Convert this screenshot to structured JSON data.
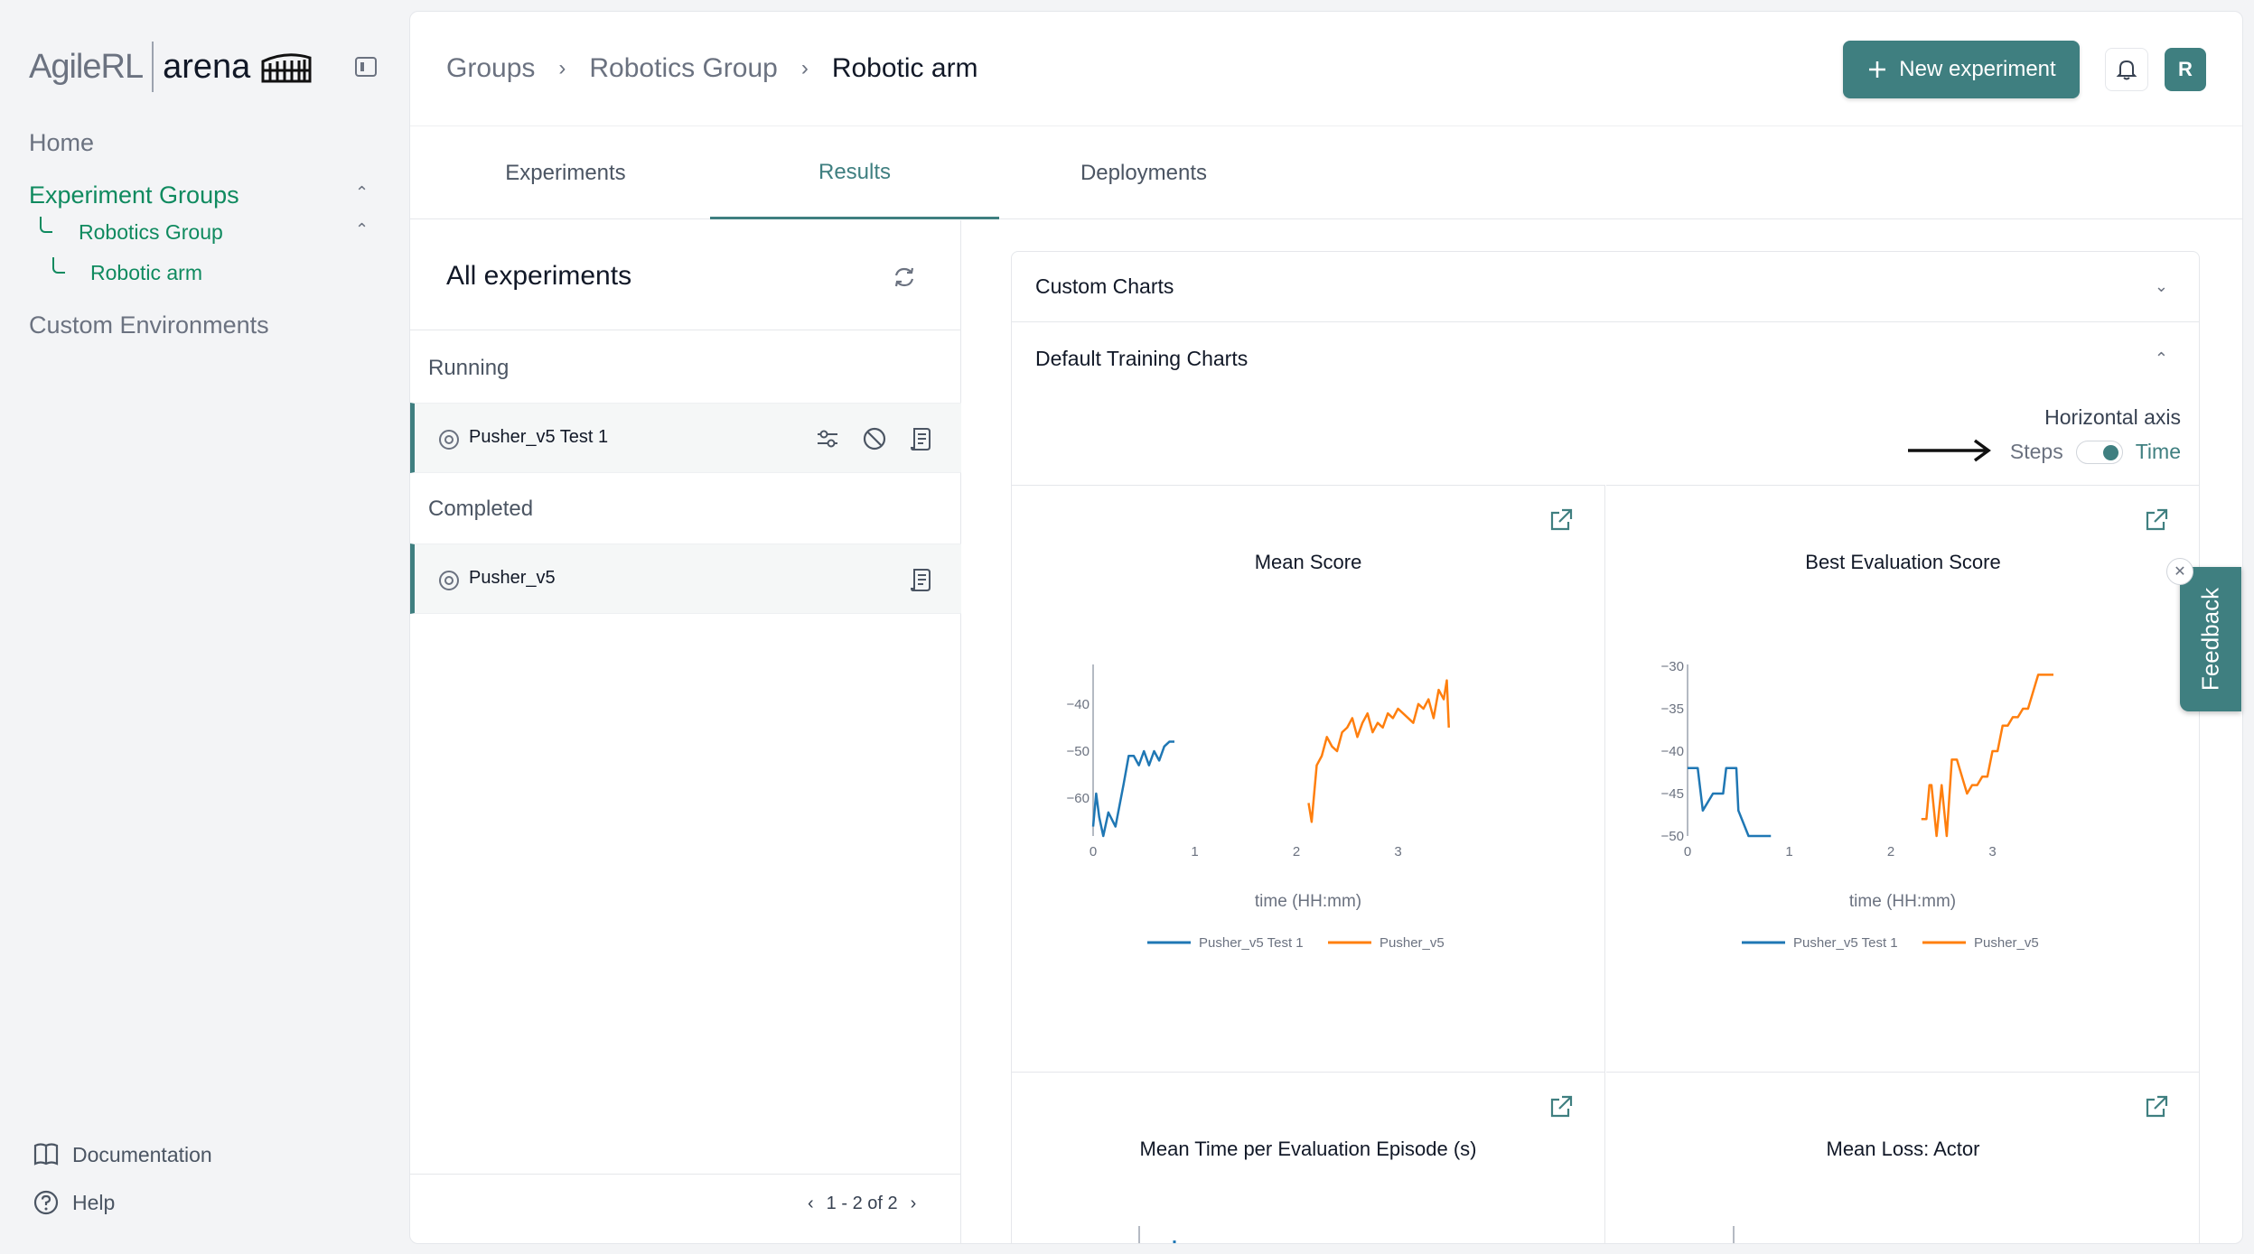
{
  "brand": {
    "agile": "AgileRL",
    "arena": "arena"
  },
  "sidebar": {
    "home": "Home",
    "experiment_groups": "Experiment Groups",
    "robotics_group": "Robotics Group",
    "robotic_arm": "Robotic arm",
    "custom_envs": "Custom Environments",
    "documentation": "Documentation",
    "help": "Help"
  },
  "header": {
    "crumbs": [
      "Groups",
      "Robotics Group",
      "Robotic arm"
    ],
    "separator": "›",
    "new_experiment": "New experiment",
    "avatar": "R"
  },
  "tabs": [
    "Experiments",
    "Results",
    "Deployments"
  ],
  "experiments": {
    "title": "All experiments",
    "running_label": "Running",
    "completed_label": "Completed",
    "running": [
      {
        "name": "Pusher_v5 Test 1"
      }
    ],
    "completed": [
      {
        "name": "Pusher_v5"
      }
    ],
    "pagination": "1 - 2 of 2"
  },
  "results": {
    "custom_charts": "Custom Charts",
    "default_charts": "Default Training Charts",
    "horizontal_axis_label": "Horizontal axis",
    "steps": "Steps",
    "time": "Time",
    "selected_axis": "Time",
    "chart_titles": [
      "Mean Score",
      "Best Evaluation Score",
      "Mean Time per Evaluation Episode (s)",
      "Mean Loss: Actor"
    ]
  },
  "feedback": "Feedback",
  "colors": {
    "accent": "#3f7f80",
    "green": "#0f8a5f",
    "series1": "#1f77b4",
    "series2": "#ff7f0e"
  },
  "chart_data": [
    {
      "type": "line",
      "title": "Mean Score",
      "xlabel": "time (HH:mm)",
      "ylabel": "",
      "xlim": [
        0,
        3.6
      ],
      "ylim": [
        -68,
        -32
      ],
      "xticks": [
        0,
        1,
        2,
        3
      ],
      "yticks": [
        -40,
        -50,
        -60
      ],
      "series": [
        {
          "name": "Pusher_v5 Test 1",
          "color": "#1f77b4",
          "x": [
            0.0,
            0.03,
            0.06,
            0.1,
            0.15,
            0.22,
            0.3,
            0.35,
            0.4,
            0.45,
            0.5,
            0.55,
            0.6,
            0.65,
            0.7,
            0.75,
            0.8
          ],
          "y": [
            -66,
            -59,
            -64,
            -68,
            -63,
            -66,
            -57,
            -51,
            -51,
            -53,
            -50,
            -53,
            -50,
            -52,
            -49,
            -48,
            -48
          ]
        },
        {
          "name": "Pusher_v5",
          "color": "#ff7f0e",
          "x": [
            2.12,
            2.15,
            2.2,
            2.25,
            2.3,
            2.35,
            2.4,
            2.45,
            2.5,
            2.55,
            2.6,
            2.65,
            2.7,
            2.75,
            2.8,
            2.85,
            2.9,
            2.95,
            3.0,
            3.05,
            3.1,
            3.15,
            3.2,
            3.25,
            3.3,
            3.35,
            3.4,
            3.45,
            3.48,
            3.5
          ],
          "y": [
            -61,
            -65,
            -53,
            -51,
            -47,
            -49,
            -50,
            -46,
            -45,
            -43,
            -47,
            -44,
            -42,
            -46,
            -44,
            -45,
            -42,
            -43,
            -41,
            -42,
            -43,
            -44,
            -40,
            -41,
            -39,
            -43,
            -37,
            -39,
            -35,
            -45
          ]
        }
      ]
    },
    {
      "type": "line",
      "title": "Best Evaluation Score",
      "xlabel": "time (HH:mm)",
      "ylabel": "",
      "xlim": [
        0,
        3.6
      ],
      "ylim": [
        -50,
        -30
      ],
      "xticks": [
        0,
        1,
        2,
        3
      ],
      "yticks": [
        -30,
        -35,
        -40,
        -45,
        -50
      ],
      "series": [
        {
          "name": "Pusher_v5 Test 1",
          "color": "#1f77b4",
          "x": [
            0.0,
            0.1,
            0.15,
            0.25,
            0.35,
            0.38,
            0.42,
            0.48,
            0.5,
            0.6,
            0.65,
            0.75,
            0.82
          ],
          "y": [
            -42,
            -42,
            -47,
            -45,
            -45,
            -42,
            -42,
            -42,
            -47,
            -50,
            -50,
            -50,
            -50
          ]
        },
        {
          "name": "Pusher_v5",
          "color": "#ff7f0e",
          "x": [
            2.3,
            2.35,
            2.38,
            2.4,
            2.45,
            2.5,
            2.55,
            2.6,
            2.65,
            2.7,
            2.75,
            2.8,
            2.85,
            2.9,
            2.95,
            3.0,
            3.05,
            3.1,
            3.15,
            3.2,
            3.25,
            3.3,
            3.35,
            3.4,
            3.45,
            3.5,
            3.55,
            3.6
          ],
          "y": [
            -48,
            -48,
            -44,
            -44,
            -50,
            -44,
            -50,
            -41,
            -41,
            -43,
            -45,
            -44,
            -44,
            -43,
            -43,
            -40,
            -40,
            -37,
            -37,
            -36,
            -36,
            -35,
            -35,
            -33,
            -31,
            -31,
            -31,
            -31
          ]
        }
      ]
    }
  ]
}
